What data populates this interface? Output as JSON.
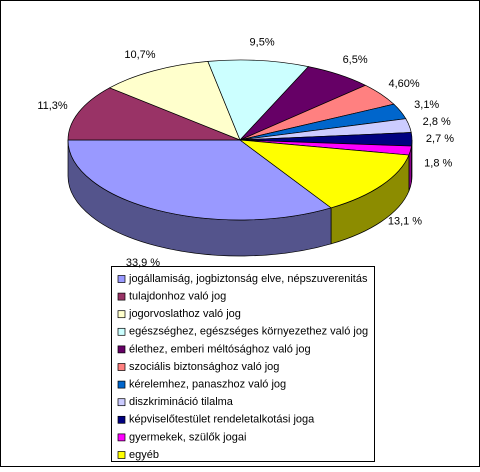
{
  "chart_data": {
    "type": "pie",
    "categories": [
      "jogállamiság, jogbiztonság elve, népszuverenitás",
      "tulajdonhoz való jog",
      "jogorvoslathoz való jog",
      "egészséghez, egészséges környezethez való jog",
      "élethez, emberi méltósághoz való jog",
      "szociális biztonsághoz való jog",
      "kérelemhez, panaszhoz való jog",
      "diszkrimináció tilalma",
      "képviselőtestület rendeletalkotási joga",
      "gyermekek, szülők jogai",
      "egyéb"
    ],
    "values": [
      33.9,
      11.3,
      10.7,
      9.5,
      6.5,
      4.6,
      3.1,
      2.8,
      2.7,
      1.8,
      13.1
    ],
    "value_labels": [
      "33,9 %",
      "11,3%",
      "10,7%",
      "9,5%",
      "6,5%",
      "4,60%",
      "3,1%",
      "2,8 %",
      "2,7 %",
      "1,8 %",
      "13,1 %"
    ],
    "colors": [
      "#9999FF",
      "#993366",
      "#FFFFCC",
      "#CCFFFF",
      "#660066",
      "#FF8080",
      "#0066CC",
      "#CCCCFF",
      "#000080",
      "#FF00FF",
      "#FFFF00"
    ],
    "legend": "bottom"
  }
}
